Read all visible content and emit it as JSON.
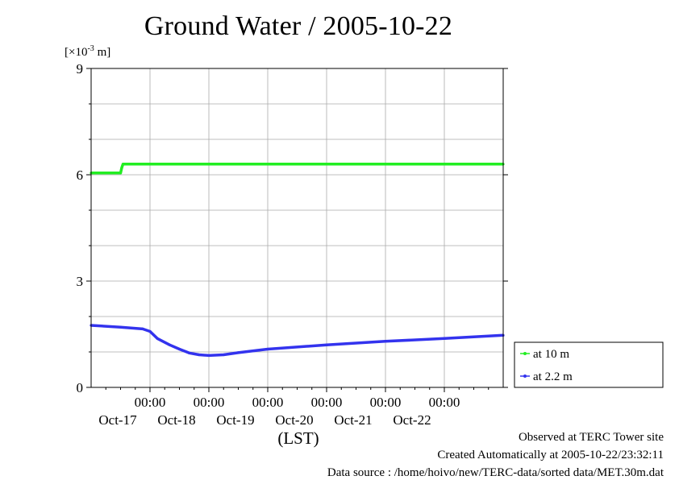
{
  "chart_data": {
    "type": "line",
    "title": "Ground Water / 2005-10-22",
    "ylabel_prefix": "[×10",
    "ylabel_exp": "-3",
    "ylabel_suffix": " m]",
    "xlabel": "(LST)",
    "ylim": [
      0,
      9
    ],
    "yticks": [
      "0",
      "3",
      "6",
      "9"
    ],
    "xlim": [
      "2005-10-16T00:00",
      "2005-10-22T24:00"
    ],
    "xtick_time_label": "00:00",
    "xtick_dates": [
      "Oct-17",
      "Oct-18",
      "Oct-19",
      "Oct-20",
      "Oct-21",
      "Oct-22"
    ],
    "grid": true,
    "legend_position": "right, outside plot area",
    "series": [
      {
        "name": "at 10 m",
        "color": "#22ee22",
        "x": [
          "2005-10-16T00:00",
          "2005-10-16T12:00",
          "2005-10-16T12:30",
          "2005-10-16T13:00",
          "2005-10-17T00:00",
          "2005-10-18T00:00",
          "2005-10-19T00:00",
          "2005-10-20T00:00",
          "2005-10-21T00:00",
          "2005-10-22T00:00",
          "2005-10-22T24:00"
        ],
        "y": [
          6.05,
          6.05,
          6.2,
          6.3,
          6.3,
          6.3,
          6.3,
          6.3,
          6.3,
          6.3,
          6.3
        ]
      },
      {
        "name": "at 2.2 m",
        "color": "#3333ee",
        "x": [
          "2005-10-16T00:00",
          "2005-10-16T12:00",
          "2005-10-16T21:00",
          "2005-10-17T00:00",
          "2005-10-17T03:00",
          "2005-10-17T08:00",
          "2005-10-17T12:00",
          "2005-10-17T16:00",
          "2005-10-17T20:00",
          "2005-10-18T00:00",
          "2005-10-18T06:00",
          "2005-10-18T12:00",
          "2005-10-19T00:00",
          "2005-10-20T00:00",
          "2005-10-21T00:00",
          "2005-10-22T00:00",
          "2005-10-22T24:00"
        ],
        "y": [
          1.75,
          1.7,
          1.65,
          1.58,
          1.38,
          1.2,
          1.08,
          0.97,
          0.92,
          0.9,
          0.92,
          0.98,
          1.08,
          1.2,
          1.3,
          1.38,
          1.47
        ]
      }
    ]
  },
  "footer": {
    "observed": "Observed at TERC Tower site",
    "created": "Created Automatically at 2005-10-22/23:32:11",
    "source": "Data source : /home/hoivo/new/TERC-data/sorted  data/MET.30m.dat"
  }
}
